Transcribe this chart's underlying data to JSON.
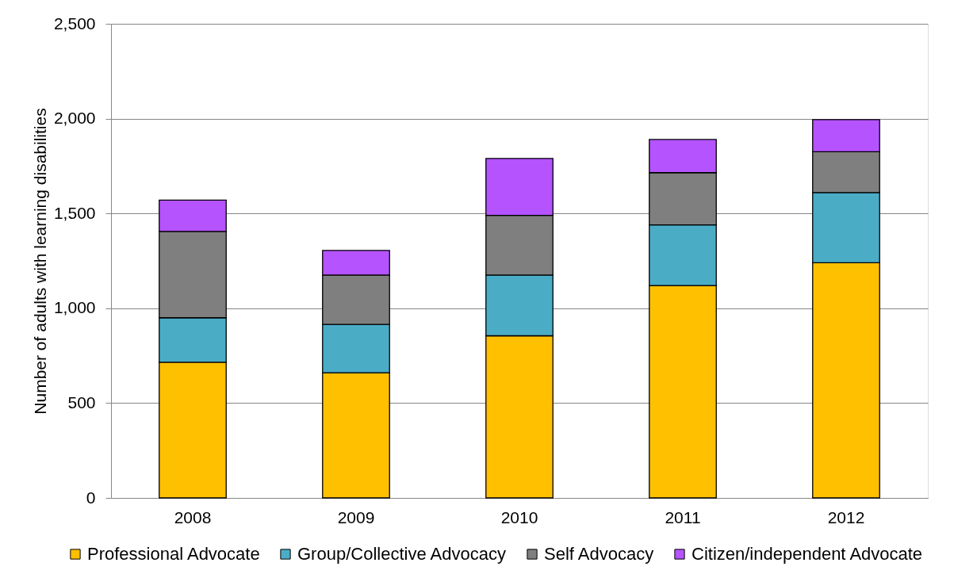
{
  "chart_data": {
    "type": "bar",
    "stacked": true,
    "ylabel": "Number of adults with learning disabilities",
    "categories": [
      "2008",
      "2009",
      "2010",
      "2011",
      "2012"
    ],
    "series": [
      {
        "name": "Professional Advocate",
        "color": "#ffc000",
        "values": [
          715,
          660,
          855,
          1120,
          1240
        ]
      },
      {
        "name": "Group/Collective Advocacy",
        "color": "#4bacc6",
        "values": [
          235,
          255,
          320,
          320,
          370
        ]
      },
      {
        "name": "Self Advocacy",
        "color": "#7f7f7f",
        "values": [
          455,
          260,
          315,
          275,
          215
        ]
      },
      {
        "name": "Citizen/independent Advocate",
        "color": "#b553ff",
        "values": [
          165,
          130,
          300,
          175,
          170
        ]
      }
    ],
    "ylim": [
      0,
      2500
    ],
    "yticks": [
      0,
      500,
      {
        "value": 1000,
        "label": "1,000"
      },
      {
        "value": 1500,
        "label": "1,500"
      },
      {
        "value": 2000,
        "label": "2,000"
      },
      {
        "value": 2500,
        "label": "2,500"
      }
    ],
    "grid": "y",
    "legend": "bottom"
  }
}
